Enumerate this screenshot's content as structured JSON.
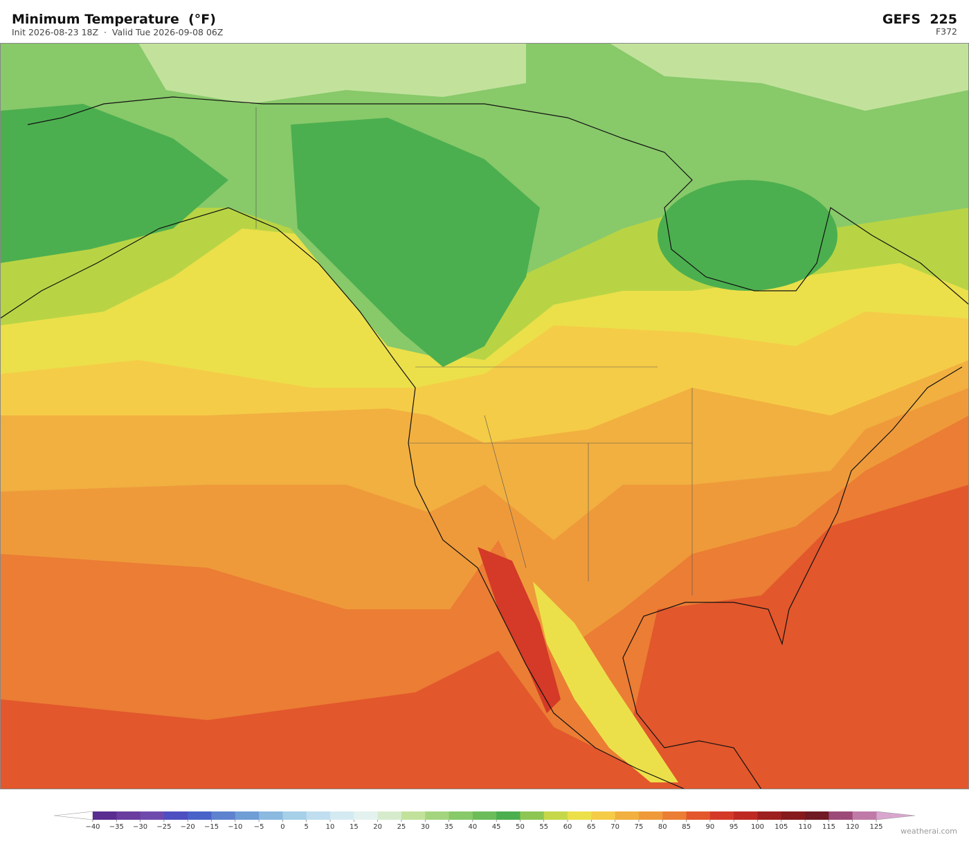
{
  "header": {
    "title": "Minimum Temperature  (°F)",
    "subtitle": "Init 2026-08-23 18Z  ·  Valid Tue 2026-09-08 06Z",
    "model": "GEFS  225",
    "forecast_hour": "F372"
  },
  "colorbar": {
    "ticks": [
      {
        "value": -40,
        "label": "−40"
      },
      {
        "value": -35,
        "label": "−35"
      },
      {
        "value": -30,
        "label": "−30"
      },
      {
        "value": -25,
        "label": "−25"
      },
      {
        "value": -20,
        "label": "−20"
      },
      {
        "value": -15,
        "label": "−15"
      },
      {
        "value": -10,
        "label": "−10"
      },
      {
        "value": -5,
        "label": "−5"
      },
      0,
      5,
      10,
      15,
      20,
      25,
      30,
      35,
      40,
      45,
      50,
      55,
      60,
      65,
      70,
      75,
      80,
      85,
      90,
      95,
      100,
      105,
      110,
      115,
      120,
      125
    ],
    "colors": [
      "#5a2d91",
      "#6a3d9f",
      "#6f4aad",
      "#4e4fc0",
      "#4a63c9",
      "#5f82cf",
      "#6f9ed6",
      "#8bb9e0",
      "#a6cfe8",
      "#c0def0",
      "#d4eaf3",
      "#e4f2ef",
      "#d6ebcc",
      "#c2e29c",
      "#a4d57e",
      "#88c96a",
      "#6cbd5a",
      "#4caf4f",
      "#8dc653",
      "#c6d84a",
      "#ece04a",
      "#f5cc47",
      "#f1b040",
      "#ef9a3a",
      "#eb7d34",
      "#e2572c",
      "#d43a27",
      "#be2a22",
      "#9e1f1f",
      "#861a1c",
      "#6f1a24",
      "#9c4a78",
      "#c07aa8"
    ],
    "under_color": "#ffffff",
    "over_color": "#d9a6cf"
  },
  "watermark": "weatherai.com"
}
